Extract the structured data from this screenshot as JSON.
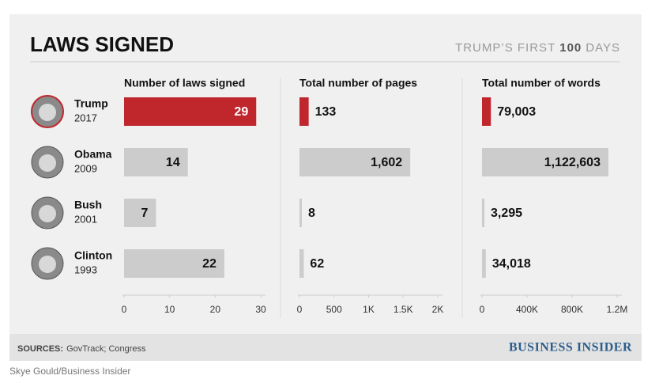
{
  "title": "LAWS SIGNED",
  "subtitle": {
    "pre": "TRUMP’S FIRST",
    "bold": "100",
    "post": "DAYS"
  },
  "presidents": [
    {
      "name": "Trump",
      "year": "2017"
    },
    {
      "name": "Obama",
      "year": "2009"
    },
    {
      "name": "Bush",
      "year": "2001"
    },
    {
      "name": "Clinton",
      "year": "1993"
    }
  ],
  "chart_data": [
    {
      "type": "bar",
      "title": "Number of laws signed",
      "values": [
        29,
        14,
        7,
        22
      ],
      "colors": [
        "#c0272d",
        "#cccccc",
        "#cccccc",
        "#cccccc"
      ],
      "xlim": [
        0,
        30
      ],
      "xticks": [
        0,
        10,
        20,
        30
      ]
    },
    {
      "type": "bar",
      "title": "Total number of pages",
      "values": [
        133,
        1602,
        8,
        62
      ],
      "value_labels": [
        "133",
        "1,602",
        "8",
        "62"
      ],
      "colors": [
        "#c0272d",
        "#cccccc",
        "#cccccc",
        "#cccccc"
      ],
      "xlim": [
        0,
        2000
      ],
      "xticks": [
        0,
        500,
        {
          "value": 1000,
          "label": "1K"
        },
        {
          "value": 1500,
          "label": "1.5K"
        },
        {
          "value": 2000,
          "label": "2K"
        }
      ]
    },
    {
      "type": "bar",
      "title": "Total number of words",
      "values": [
        79003,
        1122603,
        3295,
        34018
      ],
      "value_labels": [
        "79,003",
        "1,122,603",
        "3,295",
        "34,018"
      ],
      "colors": [
        "#c0272d",
        "#cccccc",
        "#cccccc",
        "#cccccc"
      ],
      "xlim": [
        0,
        1200000
      ],
      "xticks": [
        0,
        {
          "value": 400000,
          "label": "400K"
        },
        {
          "value": 800000,
          "label": "800K"
        },
        {
          "value": 1200000,
          "label": "1.2M"
        }
      ]
    }
  ],
  "sources": {
    "label": "SOURCES:",
    "text": "GovTrack; Congress"
  },
  "brand": "BUSINESS INSIDER",
  "credit": "Skye Gould/Business Insider"
}
